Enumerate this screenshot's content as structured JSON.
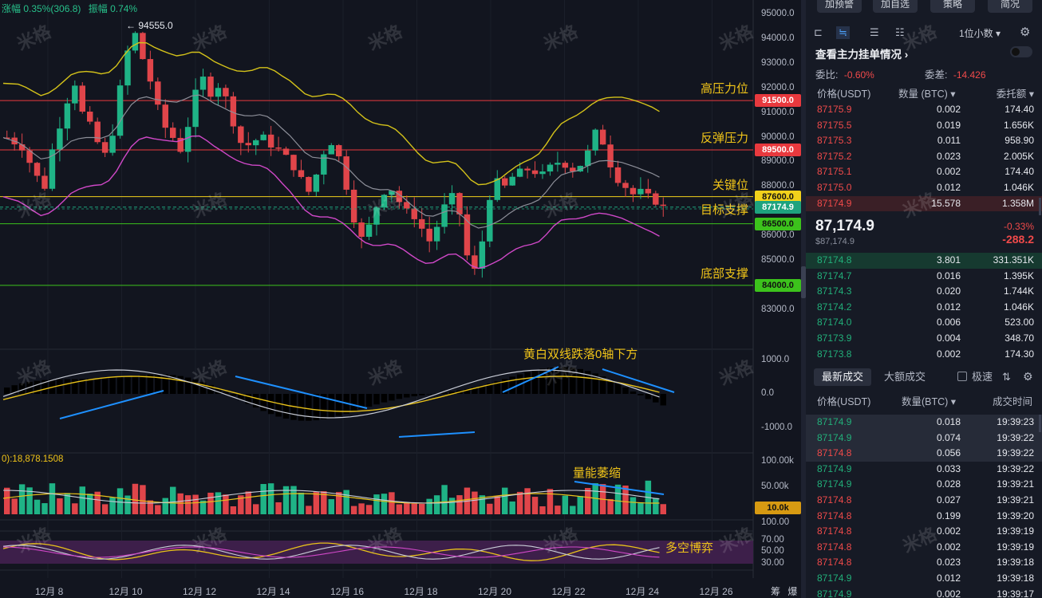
{
  "header": {
    "change_text": "涨幅 0.35%(306.8)",
    "amp_text": "振幅 0.74%",
    "high_label": "94555.0"
  },
  "price_axis": [
    "95000.0",
    "94000.0",
    "93000.0",
    "92000.0",
    "91000.0",
    "90000.0",
    "89000.0",
    "88000.0",
    "87000.0",
    "86000.0",
    "85000.0",
    "84000.0",
    "83000.0"
  ],
  "levels": [
    {
      "label": "高压力位",
      "price": "91500.0",
      "color": "#e8393e"
    },
    {
      "label": "反弹压力",
      "price": "89500.0",
      "color": "#e8393e"
    },
    {
      "label": "关键位",
      "price": "87600.0",
      "color": "#f2d21b"
    },
    {
      "label": "目标支撑",
      "price": "87174.9",
      "color": "#1ea37e"
    },
    {
      "label": "",
      "price": "86500.0",
      "color": "#3cc21c"
    },
    {
      "label": "底部支撑",
      "price": "84000.0",
      "color": "#3cc21c"
    }
  ],
  "macd": {
    "axis": [
      "1000.0",
      "0.0",
      "-1000.0"
    ],
    "note": "黄白双线跌落0轴下方"
  },
  "volume": {
    "label_prefix": "0):",
    "label_value": "18,878.1508",
    "axis": [
      "100.00k",
      "50.00k",
      "100.00"
    ],
    "current": "10.0k",
    "note": "量能萎缩"
  },
  "osc": {
    "axis": [
      "70.00",
      "50.00",
      "30.00"
    ],
    "note": "多空博弈"
  },
  "time_axis": [
    "12月 8",
    "12月 10",
    "12月 12",
    "12月 14",
    "12月 16",
    "12月 18",
    "12月 20",
    "12月 22",
    "12月 24",
    "12月 26"
  ],
  "bottom_right": [
    "筹",
    "爆"
  ],
  "watermark": "米格",
  "side": {
    "buttons": [
      "加预警",
      "加自选",
      "策略",
      "简况"
    ],
    "unit": "1位小数",
    "depth_title": "查看主力挂单情况",
    "ratio_label": "委比:",
    "ratio_value": "-0.60%",
    "diff_label": "委差:",
    "diff_value": "-14.426",
    "cols": {
      "price": "价格(USDT)",
      "qty": "数量 (BTC)",
      "total": "委托额"
    },
    "asks": [
      [
        "87175.9",
        "0.002",
        "174.40"
      ],
      [
        "87175.5",
        "0.019",
        "1.656K"
      ],
      [
        "87175.3",
        "0.011",
        "958.90"
      ],
      [
        "87175.2",
        "0.023",
        "2.005K"
      ],
      [
        "87175.1",
        "0.002",
        "174.40"
      ],
      [
        "87175.0",
        "0.012",
        "1.046K"
      ],
      [
        "87174.9",
        "15.578",
        "1.358M"
      ]
    ],
    "last_price": "87,174.9",
    "last_price_usd": "$87,174.9",
    "chg_pct": "-0.33%",
    "chg_abs": "-288.2",
    "bids": [
      [
        "87174.8",
        "3.801",
        "331.351K"
      ],
      [
        "87174.7",
        "0.016",
        "1.395K"
      ],
      [
        "87174.3",
        "0.020",
        "1.744K"
      ],
      [
        "87174.2",
        "0.012",
        "1.046K"
      ],
      [
        "87174.0",
        "0.006",
        "523.00"
      ],
      [
        "87173.9",
        "0.004",
        "348.70"
      ],
      [
        "87173.8",
        "0.002",
        "174.30"
      ]
    ],
    "trade_tabs": [
      "最新成交",
      "大额成交"
    ],
    "fast_label": "极速",
    "trade_cols": {
      "price": "价格(USDT)",
      "qty": "数量(BTC)",
      "time": "成交时间"
    },
    "trades": [
      [
        "87174.9",
        "0.018",
        "19:39:23",
        "g"
      ],
      [
        "87174.9",
        "0.074",
        "19:39:22",
        "g"
      ],
      [
        "87174.8",
        "0.056",
        "19:39:22",
        "r"
      ],
      [
        "87174.9",
        "0.033",
        "19:39:22",
        "g"
      ],
      [
        "87174.9",
        "0.028",
        "19:39:21",
        "g"
      ],
      [
        "87174.8",
        "0.027",
        "19:39:21",
        "r"
      ],
      [
        "87174.8",
        "0.199",
        "19:39:20",
        "r"
      ],
      [
        "87174.8",
        "0.002",
        "19:39:19",
        "r"
      ],
      [
        "87174.8",
        "0.002",
        "19:39:19",
        "r"
      ],
      [
        "87174.8",
        "0.023",
        "19:39:18",
        "r"
      ],
      [
        "87174.9",
        "0.012",
        "19:39:18",
        "g"
      ],
      [
        "87174.9",
        "0.002",
        "19:39:17",
        "g"
      ]
    ]
  }
}
